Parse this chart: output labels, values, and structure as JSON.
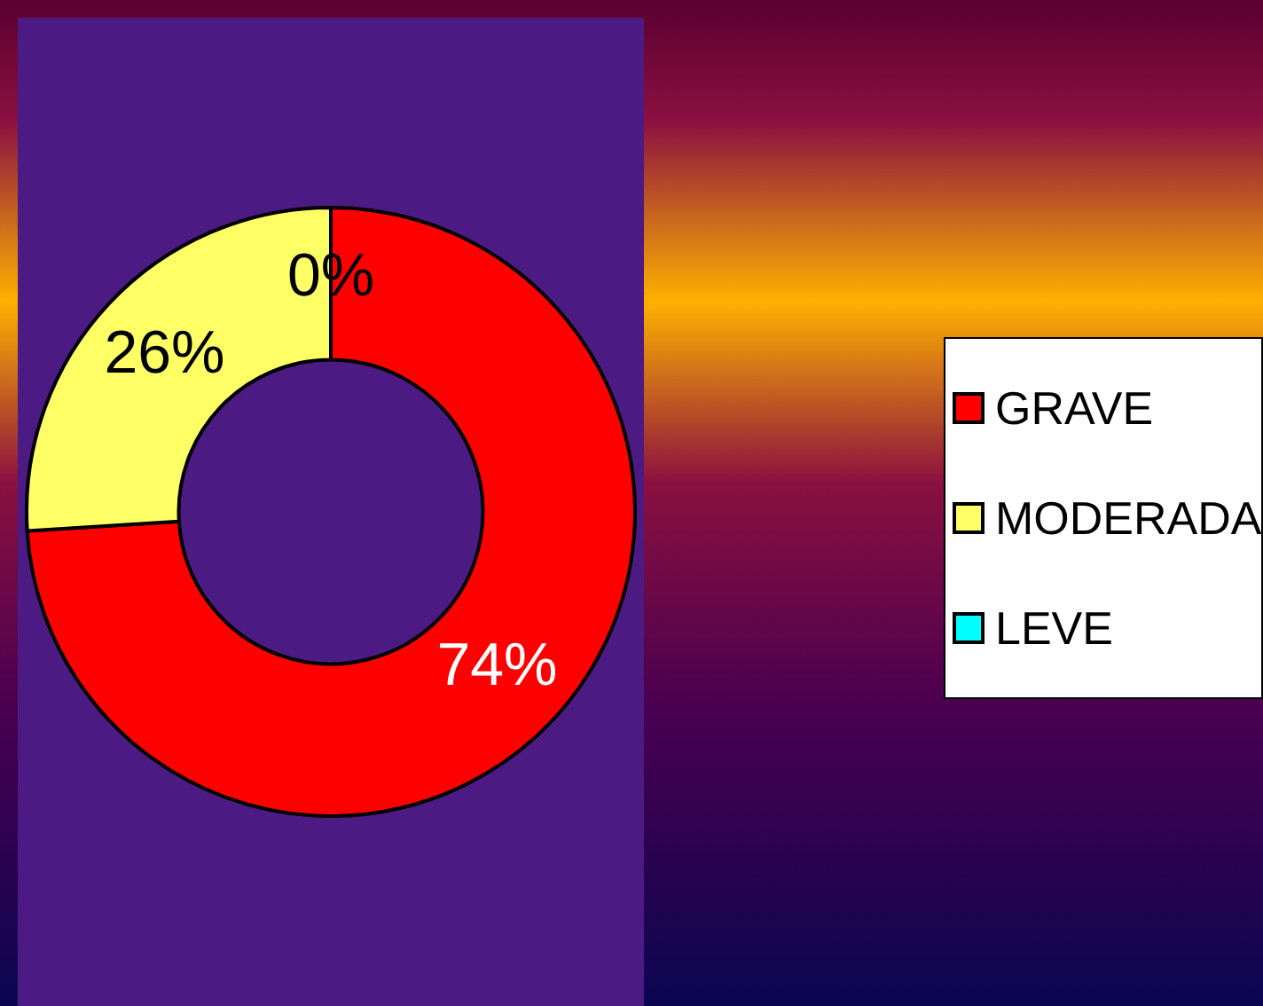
{
  "chart_data": {
    "type": "donut",
    "categories": [
      "GRAVE",
      "MODERADA",
      "LEVE"
    ],
    "values": [
      74,
      26,
      0
    ],
    "colors": [
      "#ff0000",
      "#ffff66",
      "#00ffff"
    ],
    "value_labels": [
      "74%",
      "26%",
      "0%"
    ],
    "legend": "right"
  }
}
